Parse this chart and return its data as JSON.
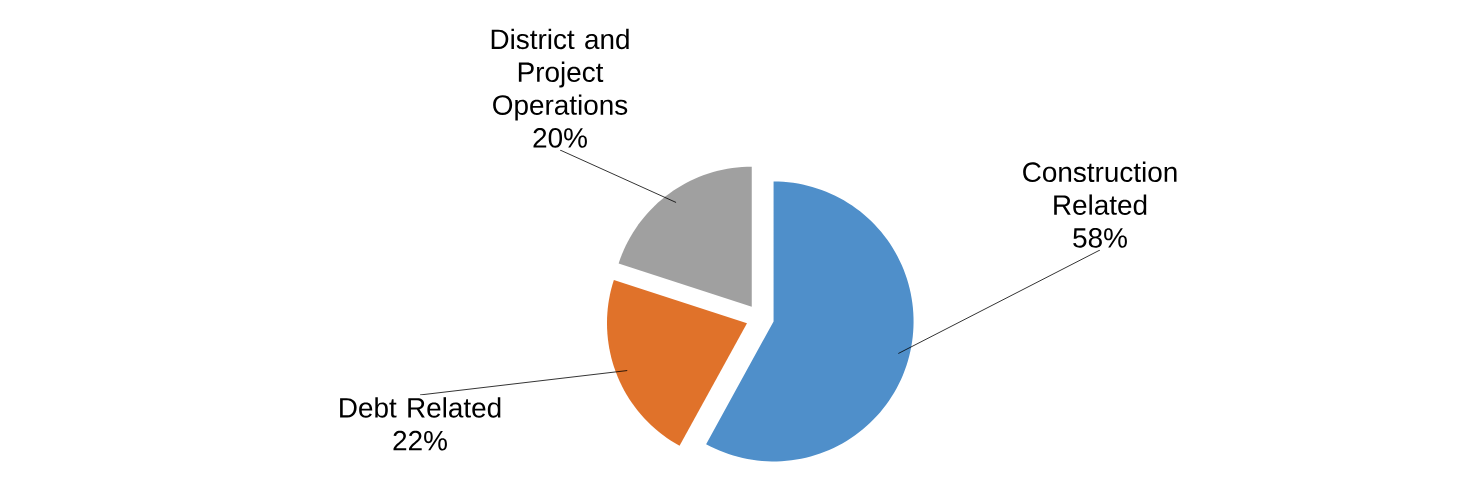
{
  "chart_data": {
    "type": "pie",
    "categories": [
      "Construction Related",
      "Debt Related",
      "District and Project Operations"
    ],
    "values": [
      58,
      22,
      20
    ],
    "value_labels": [
      "58%",
      "22%",
      "20%"
    ],
    "colors": [
      "#4f8fca",
      "#e0722a",
      "#a0a0a0"
    ]
  }
}
